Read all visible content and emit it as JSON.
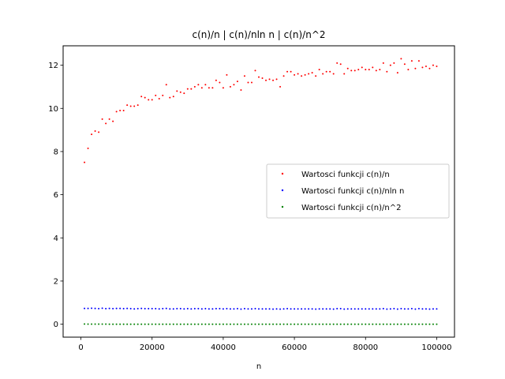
{
  "chart_data": {
    "type": "scatter",
    "title": "c(n)/n | c(n)/nln n | c(n)/n^2",
    "xlabel": "n",
    "ylabel": "",
    "xlim": [
      -5000,
      105000
    ],
    "ylim": [
      -0.6,
      12.9
    ],
    "x_ticks": [
      0,
      20000,
      40000,
      60000,
      80000,
      100000
    ],
    "x_tick_labels": [
      "0",
      "20000",
      "40000",
      "60000",
      "80000",
      "100000"
    ],
    "y_ticks": [
      0,
      2,
      4,
      6,
      8,
      10,
      12
    ],
    "y_tick_labels": [
      "0",
      "2",
      "4",
      "6",
      "8",
      "10",
      "12"
    ],
    "grid": false,
    "legend_position": "center-right",
    "x": [
      1000,
      2000,
      3000,
      4000,
      5000,
      6000,
      7000,
      8000,
      9000,
      10000,
      11000,
      12000,
      13000,
      14000,
      15000,
      16000,
      17000,
      18000,
      19000,
      20000,
      21000,
      22000,
      23000,
      24000,
      25000,
      26000,
      27000,
      28000,
      29000,
      30000,
      31000,
      32000,
      33000,
      34000,
      35000,
      36000,
      37000,
      38000,
      39000,
      40000,
      41000,
      42000,
      43000,
      44000,
      45000,
      46000,
      47000,
      48000,
      49000,
      50000,
      51000,
      52000,
      53000,
      54000,
      55000,
      56000,
      57000,
      58000,
      59000,
      60000,
      61000,
      62000,
      63000,
      64000,
      65000,
      66000,
      67000,
      68000,
      69000,
      70000,
      71000,
      72000,
      73000,
      74000,
      75000,
      76000,
      77000,
      78000,
      79000,
      80000,
      81000,
      82000,
      83000,
      84000,
      85000,
      86000,
      87000,
      88000,
      89000,
      90000,
      91000,
      92000,
      93000,
      94000,
      95000,
      96000,
      97000,
      98000,
      99000,
      100000
    ],
    "series": [
      {
        "name": "Wartosci funkcji c(n)/n",
        "color": "#ff0000",
        "values": [
          7.5,
          8.15,
          8.8,
          8.95,
          8.9,
          9.5,
          9.3,
          9.5,
          9.4,
          9.85,
          9.9,
          9.9,
          10.15,
          10.1,
          10.1,
          10.15,
          10.55,
          10.5,
          10.4,
          10.4,
          10.6,
          10.45,
          10.6,
          11.1,
          10.5,
          10.55,
          10.8,
          10.75,
          10.7,
          10.9,
          10.9,
          11.0,
          11.1,
          10.95,
          11.1,
          10.95,
          10.95,
          11.3,
          11.2,
          10.95,
          11.55,
          11.0,
          11.1,
          11.25,
          10.85,
          11.5,
          11.2,
          11.2,
          11.75,
          11.45,
          11.4,
          11.3,
          11.35,
          11.3,
          11.35,
          11.0,
          11.5,
          11.7,
          11.7,
          11.55,
          11.6,
          11.5,
          11.55,
          11.6,
          11.65,
          11.5,
          11.8,
          11.6,
          11.7,
          11.7,
          11.6,
          12.1,
          12.05,
          11.6,
          11.85,
          11.75,
          11.75,
          11.8,
          11.9,
          11.8,
          11.8,
          11.9,
          11.75,
          11.8,
          12.1,
          11.7,
          12.0,
          12.1,
          11.65,
          12.3,
          12.05,
          11.8,
          12.2,
          11.85,
          12.2,
          11.9,
          11.95,
          11.85,
          12.0,
          11.95
        ]
      },
      {
        "name": "Wartosci funkcji c(n)/nln n",
        "color": "#0000ff",
        "values": [
          0.73,
          0.73,
          0.74,
          0.73,
          0.72,
          0.74,
          0.72,
          0.73,
          0.72,
          0.73,
          0.73,
          0.72,
          0.73,
          0.72,
          0.71,
          0.72,
          0.73,
          0.72,
          0.72,
          0.72,
          0.72,
          0.71,
          0.72,
          0.73,
          0.71,
          0.71,
          0.72,
          0.72,
          0.71,
          0.72,
          0.71,
          0.72,
          0.72,
          0.71,
          0.72,
          0.71,
          0.71,
          0.72,
          0.72,
          0.71,
          0.72,
          0.71,
          0.71,
          0.72,
          0.7,
          0.72,
          0.71,
          0.71,
          0.72,
          0.71,
          0.71,
          0.71,
          0.71,
          0.7,
          0.71,
          0.7,
          0.71,
          0.72,
          0.71,
          0.71,
          0.71,
          0.71,
          0.71,
          0.71,
          0.71,
          0.7,
          0.71,
          0.71,
          0.71,
          0.71,
          0.7,
          0.72,
          0.72,
          0.7,
          0.71,
          0.71,
          0.71,
          0.71,
          0.71,
          0.71,
          0.71,
          0.71,
          0.71,
          0.71,
          0.72,
          0.7,
          0.71,
          0.72,
          0.7,
          0.72,
          0.71,
          0.71,
          0.72,
          0.7,
          0.72,
          0.71,
          0.71,
          0.7,
          0.71,
          0.71
        ]
      },
      {
        "name": "Wartosci funkcji c(n)/n^2",
        "color": "#008000",
        "values": [
          0.0075,
          0.0041,
          0.0029,
          0.0022,
          0.0018,
          0.0016,
          0.0013,
          0.0012,
          0.001,
          0.001,
          0.0009,
          0.0008,
          0.0008,
          0.0007,
          0.0007,
          0.0006,
          0.0006,
          0.0006,
          0.0005,
          0.0005,
          0.0005,
          0.0005,
          0.0005,
          0.0005,
          0.0004,
          0.0004,
          0.0004,
          0.0004,
          0.0004,
          0.0004,
          0.0004,
          0.0003,
          0.0003,
          0.0003,
          0.0003,
          0.0003,
          0.0003,
          0.0003,
          0.0003,
          0.0003,
          0.0003,
          0.0003,
          0.0003,
          0.0003,
          0.0002,
          0.0002,
          0.0002,
          0.0002,
          0.0002,
          0.0002,
          0.0002,
          0.0002,
          0.0002,
          0.0002,
          0.0002,
          0.0002,
          0.0002,
          0.0002,
          0.0002,
          0.0002,
          0.0002,
          0.0002,
          0.0002,
          0.0002,
          0.0002,
          0.0002,
          0.0002,
          0.0002,
          0.0002,
          0.0002,
          0.0002,
          0.0002,
          0.0002,
          0.0002,
          0.0002,
          0.0002,
          0.0002,
          0.0002,
          0.0002,
          0.0001,
          0.0001,
          0.0001,
          0.0001,
          0.0001,
          0.0001,
          0.0001,
          0.0001,
          0.0001,
          0.0001,
          0.0001,
          0.0001,
          0.0001,
          0.0001,
          0.0001,
          0.0001,
          0.0001,
          0.0001,
          0.0001,
          0.0001,
          0.0001
        ]
      }
    ]
  }
}
